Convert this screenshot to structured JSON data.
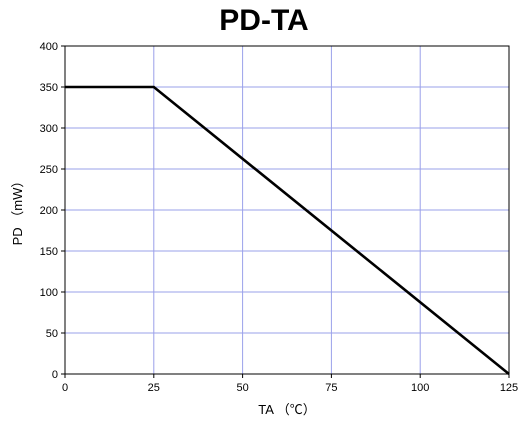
{
  "chart_data": {
    "type": "line",
    "title": "PD-TA",
    "xlabel": "TA （℃）",
    "ylabel": "PD （mW）",
    "xlim": [
      0,
      125
    ],
    "ylim": [
      0,
      400
    ],
    "x_ticks": [
      0,
      25,
      50,
      75,
      100,
      125
    ],
    "y_ticks": [
      0,
      50,
      100,
      150,
      200,
      250,
      300,
      350,
      400
    ],
    "grid": true,
    "series": [
      {
        "x": [
          0,
          25,
          125
        ],
        "y": [
          350,
          350,
          0
        ]
      }
    ]
  },
  "colors": {
    "grid": "#9aa0ea",
    "axis": "#000000",
    "line": "#000000"
  }
}
